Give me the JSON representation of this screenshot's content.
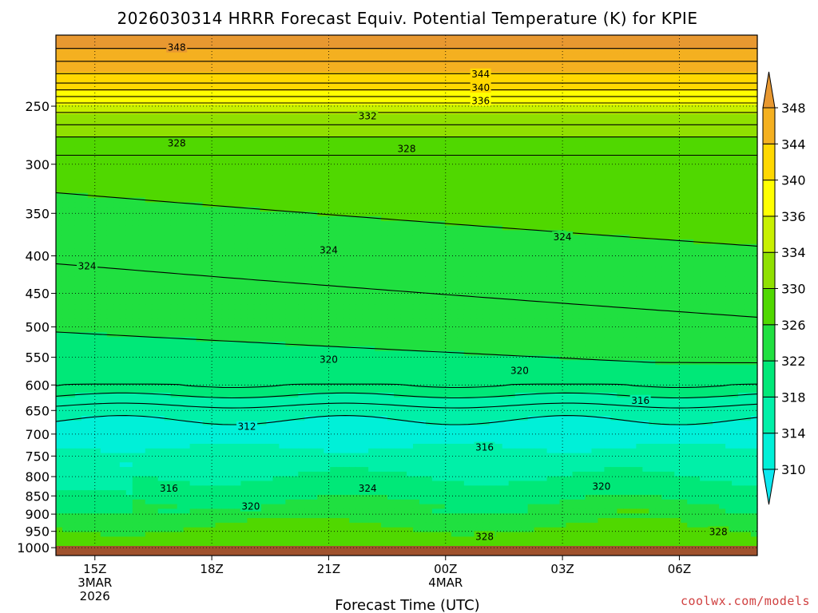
{
  "chart_data": {
    "type": "heatmap",
    "title": "2026030314 HRRR Forecast Equiv. Potential Temperature (K) for KPIE",
    "xlabel": "Forecast Time (UTC)",
    "ylabel": "",
    "y_scale": "log",
    "y_reversed": true,
    "y_ticks": [
      250,
      300,
      350,
      400,
      450,
      500,
      550,
      600,
      650,
      700,
      750,
      800,
      850,
      900,
      950,
      1000
    ],
    "x_ticks": [
      {
        "label": "15Z",
        "sub": [
          "3MAR",
          "2026"
        ]
      },
      {
        "label": "18Z",
        "sub": []
      },
      {
        "label": "21Z",
        "sub": []
      },
      {
        "label": "00Z",
        "sub": [
          "4MAR"
        ]
      },
      {
        "label": "03Z",
        "sub": []
      },
      {
        "label": "06Z",
        "sub": []
      }
    ],
    "x_tick_hours": [
      15,
      18,
      21,
      24,
      27,
      30
    ],
    "x_range_hours": [
      14.0,
      32.0
    ],
    "y_range_hpa": [
      200,
      1025
    ],
    "grid": true,
    "colorbar": {
      "levels": [
        310,
        314,
        318,
        322,
        326,
        330,
        334,
        336,
        340,
        344,
        348
      ],
      "colors": [
        "#0ce8f0",
        "#00f0d8",
        "#00f0a8",
        "#00e878",
        "#20e040",
        "#50d800",
        "#90e000",
        "#c8f000",
        "#ffff00",
        "#ffd800",
        "#f4b020",
        "#e89830"
      ],
      "extend": "both"
    },
    "contour_labels": [
      {
        "text": "348",
        "hour": 17.1,
        "hpa": 208
      },
      {
        "text": "344",
        "hour": 24.9,
        "hpa": 226
      },
      {
        "text": "340",
        "hour": 24.9,
        "hpa": 236
      },
      {
        "text": "336",
        "hour": 24.9,
        "hpa": 246
      },
      {
        "text": "332",
        "hour": 22.0,
        "hpa": 258
      },
      {
        "text": "328",
        "hour": 17.1,
        "hpa": 281
      },
      {
        "text": "328",
        "hour": 23.0,
        "hpa": 286
      },
      {
        "text": "324",
        "hour": 14.8,
        "hpa": 413
      },
      {
        "text": "324",
        "hour": 21.0,
        "hpa": 393
      },
      {
        "text": "324",
        "hour": 27.0,
        "hpa": 377
      },
      {
        "text": "320",
        "hour": 21.0,
        "hpa": 554
      },
      {
        "text": "320",
        "hour": 25.9,
        "hpa": 574
      },
      {
        "text": "316",
        "hour": 29.0,
        "hpa": 630
      },
      {
        "text": "312",
        "hour": 18.9,
        "hpa": 684
      },
      {
        "text": "316",
        "hour": 25.0,
        "hpa": 730
      },
      {
        "text": "316",
        "hour": 16.9,
        "hpa": 830
      },
      {
        "text": "324",
        "hour": 22.0,
        "hpa": 830
      },
      {
        "text": "320",
        "hour": 28.0,
        "hpa": 825
      },
      {
        "text": "320",
        "hour": 19.0,
        "hpa": 879
      },
      {
        "text": "328",
        "hour": 25.0,
        "hpa": 966
      },
      {
        "text": "328",
        "hour": 31.0,
        "hpa": 952
      }
    ]
  },
  "credit": "coolwx.com/models"
}
